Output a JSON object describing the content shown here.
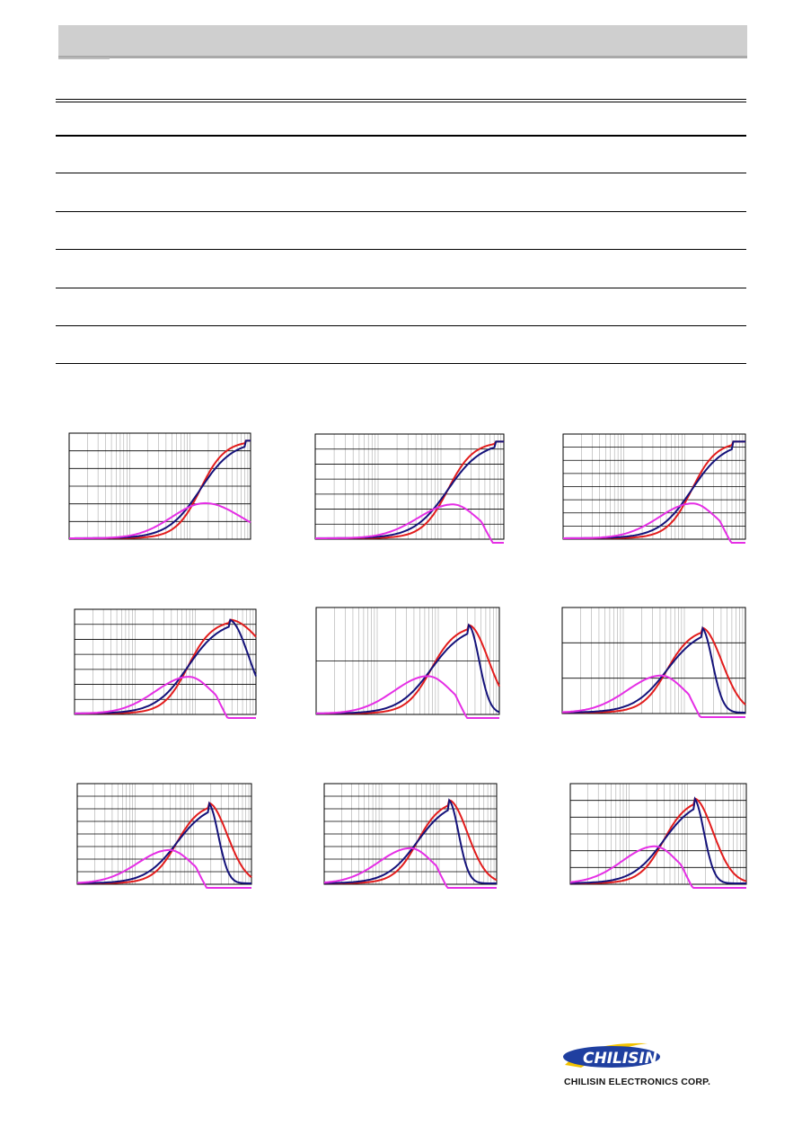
{
  "brand": {
    "company_name": "CHILISIN ELECTRONICS CORP.",
    "logo_text": "CHILISIN",
    "logo_fill": "#1f3fa0",
    "logo_swoosh": "#f2c200"
  },
  "curve_colors": {
    "red": "#e21c1c",
    "navy": "#14127a",
    "magenta": "#e52ee5"
  },
  "chart_data": [
    {
      "type": "line",
      "series": [
        {
          "color": "red",
          "peak": 1.0,
          "decay": "none"
        },
        {
          "color": "navy",
          "peak": 1.0,
          "decay": "none"
        },
        {
          "color": "magenta",
          "peak": 0.36,
          "decay": "slow"
        }
      ]
    },
    {
      "type": "line",
      "series": [
        {
          "color": "red",
          "peak": 1.0,
          "decay": "none"
        },
        {
          "color": "navy",
          "peak": 1.0,
          "decay": "none"
        },
        {
          "color": "magenta",
          "peak": 0.35,
          "decay": "fast"
        }
      ]
    },
    {
      "type": "line",
      "series": [
        {
          "color": "red",
          "peak": 1.0,
          "decay": "none"
        },
        {
          "color": "navy",
          "peak": 1.0,
          "decay": "none"
        },
        {
          "color": "magenta",
          "peak": 0.36,
          "decay": "fast"
        }
      ]
    },
    {
      "type": "line",
      "series": [
        {
          "color": "red",
          "peak": 0.97,
          "decay": "slow"
        },
        {
          "color": "navy",
          "peak": 0.97,
          "decay": "medium"
        },
        {
          "color": "magenta",
          "peak": 0.38,
          "decay": "fast"
        }
      ]
    },
    {
      "type": "line",
      "series": [
        {
          "color": "red",
          "peak": 0.9,
          "decay": "medium"
        },
        {
          "color": "navy",
          "peak": 0.9,
          "decay": "fast"
        },
        {
          "color": "magenta",
          "peak": 0.38,
          "decay": "fast"
        }
      ]
    },
    {
      "type": "line",
      "series": [
        {
          "color": "red",
          "peak": 0.87,
          "decay": "medium"
        },
        {
          "color": "navy",
          "peak": 0.87,
          "decay": "fast"
        },
        {
          "color": "magenta",
          "peak": 0.38,
          "decay": "fast"
        }
      ]
    },
    {
      "type": "line",
      "series": [
        {
          "color": "red",
          "peak": 0.87,
          "decay": "medium"
        },
        {
          "color": "navy",
          "peak": 0.87,
          "decay": "fast"
        },
        {
          "color": "magenta",
          "peak": 0.36,
          "decay": "fast"
        }
      ]
    },
    {
      "type": "line",
      "series": [
        {
          "color": "red",
          "peak": 0.9,
          "decay": "medium"
        },
        {
          "color": "navy",
          "peak": 0.9,
          "decay": "fast"
        },
        {
          "color": "magenta",
          "peak": 0.38,
          "decay": "fast"
        }
      ]
    },
    {
      "type": "line",
      "series": [
        {
          "color": "red",
          "peak": 0.92,
          "decay": "medium"
        },
        {
          "color": "navy",
          "peak": 0.92,
          "decay": "fast"
        },
        {
          "color": "magenta",
          "peak": 0.4,
          "decay": "fast"
        }
      ]
    }
  ]
}
